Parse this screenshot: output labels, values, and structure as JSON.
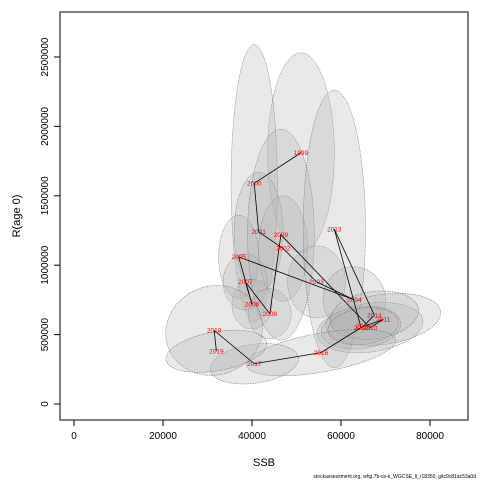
{
  "chart_data": {
    "type": "scatter",
    "xlabel": "SSB",
    "ylabel": "R(age 0)",
    "xlim": [
      -3000,
      88000
    ],
    "ylim": [
      -100000,
      2800000
    ],
    "x_ticks": [
      0,
      20000,
      40000,
      60000,
      80000
    ],
    "x_tick_labels": [
      "0",
      "20000",
      "40000",
      "60000",
      "80000"
    ],
    "y_ticks": [
      0,
      500000,
      1000000,
      1500000,
      2000000,
      2500000
    ],
    "y_tick_labels": [
      "0",
      "500000",
      "1000000",
      "1500000",
      "2000000",
      "2500000"
    ],
    "grid": false,
    "point_color": "#ff0000",
    "line_color": "#000000",
    "ellipse_fill": "#b0b0b0",
    "ellipse_stroke": "#666666",
    "points": [
      {
        "year": "1999",
        "x": 51000,
        "y": 1810000
      },
      {
        "year": "2000",
        "x": 40500,
        "y": 1590000
      },
      {
        "year": "2001",
        "x": 41500,
        "y": 1240000
      },
      {
        "year": "2002",
        "x": 47000,
        "y": 1120000
      },
      {
        "year": "2003",
        "x": 54500,
        "y": 880000
      },
      {
        "year": "2004",
        "x": 63000,
        "y": 750000
      },
      {
        "year": "2005",
        "x": 37000,
        "y": 1060000
      },
      {
        "year": "2006",
        "x": 40000,
        "y": 720000
      },
      {
        "year": "2007",
        "x": 38500,
        "y": 880000
      },
      {
        "year": "2008",
        "x": 44000,
        "y": 650000
      },
      {
        "year": "2009",
        "x": 46500,
        "y": 1220000
      },
      {
        "year": "2010",
        "x": 66500,
        "y": 550000
      },
      {
        "year": "2011",
        "x": 69500,
        "y": 610000
      },
      {
        "year": "2012",
        "x": 64500,
        "y": 550000
      },
      {
        "year": "2013",
        "x": 58500,
        "y": 1260000
      },
      {
        "year": "2014",
        "x": 67500,
        "y": 640000
      },
      {
        "year": "2015",
        "x": 65000,
        "y": 560000
      },
      {
        "year": "2016",
        "x": 55500,
        "y": 370000
      },
      {
        "year": "2017",
        "x": 40500,
        "y": 290000
      },
      {
        "year": "2018",
        "x": 31500,
        "y": 530000
      },
      {
        "year": "2019",
        "x": 32000,
        "y": 380000
      }
    ],
    "uncertainty_ellipses": [
      {
        "cx": 51000,
        "cy": 1810000,
        "sx": 7500,
        "sy": 720000,
        "rot_deg": 0
      },
      {
        "cx": 40500,
        "cy": 1590000,
        "sx": 5200,
        "sy": 1000000,
        "rot_deg": 0
      },
      {
        "cx": 41500,
        "cy": 1240000,
        "sx": 5500,
        "sy": 430000,
        "rot_deg": 0
      },
      {
        "cx": 47000,
        "cy": 1120000,
        "sx": 5500,
        "sy": 380000,
        "rot_deg": 0
      },
      {
        "cx": 54500,
        "cy": 880000,
        "sx": 6500,
        "sy": 260000,
        "rot_deg": 0
      },
      {
        "cx": 63000,
        "cy": 750000,
        "sx": 7000,
        "sy": 240000,
        "rot_deg": -10
      },
      {
        "cx": 37000,
        "cy": 1060000,
        "sx": 4500,
        "sy": 300000,
        "rot_deg": 0
      },
      {
        "cx": 40000,
        "cy": 720000,
        "sx": 4500,
        "sy": 180000,
        "rot_deg": 0
      },
      {
        "cx": 38500,
        "cy": 880000,
        "sx": 5000,
        "sy": 200000,
        "rot_deg": 0
      },
      {
        "cx": 44000,
        "cy": 650000,
        "sx": 4800,
        "sy": 180000,
        "rot_deg": 0
      },
      {
        "cx": 46500,
        "cy": 1220000,
        "sx": 7500,
        "sy": 760000,
        "rot_deg": 0
      },
      {
        "cx": 66500,
        "cy": 550000,
        "sx": 12000,
        "sy": 175000,
        "rot_deg": -8
      },
      {
        "cx": 69500,
        "cy": 610000,
        "sx": 13000,
        "sy": 180000,
        "rot_deg": -8
      },
      {
        "cx": 64500,
        "cy": 550000,
        "sx": 9000,
        "sy": 150000,
        "rot_deg": -8
      },
      {
        "cx": 58500,
        "cy": 1260000,
        "sx": 7000,
        "sy": 1000000,
        "rot_deg": 0
      },
      {
        "cx": 67500,
        "cy": 640000,
        "sx": 10000,
        "sy": 170000,
        "rot_deg": -8
      },
      {
        "cx": 65000,
        "cy": 560000,
        "sx": 8000,
        "sy": 130000,
        "rot_deg": -8
      },
      {
        "cx": 55500,
        "cy": 370000,
        "sx": 17000,
        "sy": 140000,
        "rot_deg": -10
      },
      {
        "cx": 40500,
        "cy": 290000,
        "sx": 10000,
        "sy": 140000,
        "rot_deg": -8
      },
      {
        "cx": 31500,
        "cy": 530000,
        "sx": 11000,
        "sy": 320000,
        "rot_deg": -20
      },
      {
        "cx": 32000,
        "cy": 380000,
        "sx": 11500,
        "sy": 140000,
        "rot_deg": -10
      }
    ],
    "footer_note": "stockassessment.org, whg.7b-ce-k_WGCSE_ll_r18350, gitc9c81ac53a0d"
  }
}
